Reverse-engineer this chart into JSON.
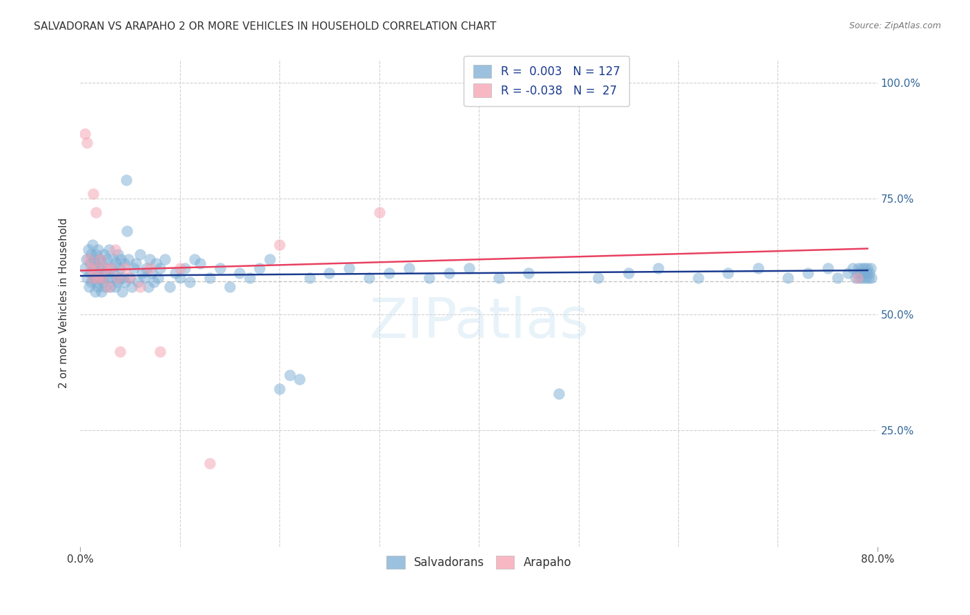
{
  "title": "SALVADORAN VS ARAPAHO 2 OR MORE VEHICLES IN HOUSEHOLD CORRELATION CHART",
  "source": "Source: ZipAtlas.com",
  "ylabel": "2 or more Vehicles in Household",
  "R1": 0.003,
  "N1": 127,
  "R2": -0.038,
  "N2": 27,
  "blue_color": "#7aadd4",
  "pink_color": "#f5a0b0",
  "blue_line_color": "#1a3a8f",
  "pink_line_color": "#e84060",
  "legend_label1": "Salvadorans",
  "legend_label2": "Arapaho",
  "watermark": "ZIPatlas",
  "xmin": 0.0,
  "xmax": 0.8,
  "ymin": 0.0,
  "ymax": 1.05,
  "grid_color": "#d0d0d0",
  "axis_color": "#336699",
  "title_color": "#333333",
  "blue_scatter_x": [
    0.005,
    0.006,
    0.007,
    0.008,
    0.009,
    0.01,
    0.01,
    0.011,
    0.011,
    0.012,
    0.013,
    0.014,
    0.014,
    0.015,
    0.015,
    0.016,
    0.016,
    0.017,
    0.018,
    0.018,
    0.019,
    0.02,
    0.02,
    0.021,
    0.022,
    0.022,
    0.023,
    0.024,
    0.025,
    0.025,
    0.026,
    0.027,
    0.028,
    0.029,
    0.03,
    0.031,
    0.032,
    0.033,
    0.034,
    0.035,
    0.036,
    0.037,
    0.038,
    0.039,
    0.04,
    0.041,
    0.042,
    0.043,
    0.044,
    0.045,
    0.046,
    0.047,
    0.048,
    0.05,
    0.052,
    0.054,
    0.056,
    0.058,
    0.06,
    0.062,
    0.064,
    0.066,
    0.068,
    0.07,
    0.072,
    0.074,
    0.076,
    0.078,
    0.08,
    0.085,
    0.09,
    0.095,
    0.1,
    0.105,
    0.11,
    0.115,
    0.12,
    0.13,
    0.14,
    0.15,
    0.16,
    0.17,
    0.18,
    0.19,
    0.2,
    0.21,
    0.22,
    0.23,
    0.25,
    0.27,
    0.29,
    0.31,
    0.33,
    0.35,
    0.37,
    0.39,
    0.42,
    0.45,
    0.48,
    0.52,
    0.55,
    0.58,
    0.62,
    0.65,
    0.68,
    0.71,
    0.73,
    0.75,
    0.76,
    0.77,
    0.775,
    0.778,
    0.78,
    0.781,
    0.782,
    0.783,
    0.784,
    0.785,
    0.786,
    0.787,
    0.788,
    0.789,
    0.79,
    0.791,
    0.792,
    0.793,
    0.794
  ],
  "blue_scatter_y": [
    0.6,
    0.62,
    0.58,
    0.64,
    0.56,
    0.61,
    0.59,
    0.63,
    0.57,
    0.65,
    0.58,
    0.6,
    0.62,
    0.55,
    0.61,
    0.57,
    0.63,
    0.59,
    0.56,
    0.64,
    0.58,
    0.6,
    0.62,
    0.55,
    0.58,
    0.61,
    0.57,
    0.63,
    0.59,
    0.56,
    0.6,
    0.62,
    0.58,
    0.64,
    0.56,
    0.6,
    0.58,
    0.62,
    0.59,
    0.56,
    0.61,
    0.57,
    0.63,
    0.58,
    0.6,
    0.62,
    0.55,
    0.58,
    0.61,
    0.57,
    0.79,
    0.68,
    0.62,
    0.58,
    0.56,
    0.6,
    0.61,
    0.57,
    0.63,
    0.59,
    0.58,
    0.6,
    0.56,
    0.62,
    0.59,
    0.57,
    0.61,
    0.58,
    0.6,
    0.62,
    0.56,
    0.59,
    0.58,
    0.6,
    0.57,
    0.62,
    0.61,
    0.58,
    0.6,
    0.56,
    0.59,
    0.58,
    0.6,
    0.62,
    0.34,
    0.37,
    0.36,
    0.58,
    0.59,
    0.6,
    0.58,
    0.59,
    0.6,
    0.58,
    0.59,
    0.6,
    0.58,
    0.59,
    0.33,
    0.58,
    0.59,
    0.6,
    0.58,
    0.59,
    0.6,
    0.58,
    0.59,
    0.6,
    0.58,
    0.59,
    0.6,
    0.58,
    0.59,
    0.6,
    0.58,
    0.59,
    0.6,
    0.58,
    0.59,
    0.6,
    0.58,
    0.59,
    0.6,
    0.58,
    0.59,
    0.6,
    0.58
  ],
  "pink_scatter_x": [
    0.005,
    0.007,
    0.008,
    0.01,
    0.012,
    0.013,
    0.015,
    0.016,
    0.018,
    0.02,
    0.022,
    0.025,
    0.028,
    0.03,
    0.035,
    0.038,
    0.04,
    0.045,
    0.05,
    0.06,
    0.07,
    0.08,
    0.1,
    0.13,
    0.2,
    0.3,
    0.78
  ],
  "pink_scatter_y": [
    0.89,
    0.87,
    0.62,
    0.6,
    0.58,
    0.76,
    0.6,
    0.72,
    0.58,
    0.62,
    0.58,
    0.6,
    0.56,
    0.6,
    0.64,
    0.58,
    0.42,
    0.6,
    0.58,
    0.56,
    0.6,
    0.42,
    0.6,
    0.18,
    0.65,
    0.72,
    0.58
  ]
}
